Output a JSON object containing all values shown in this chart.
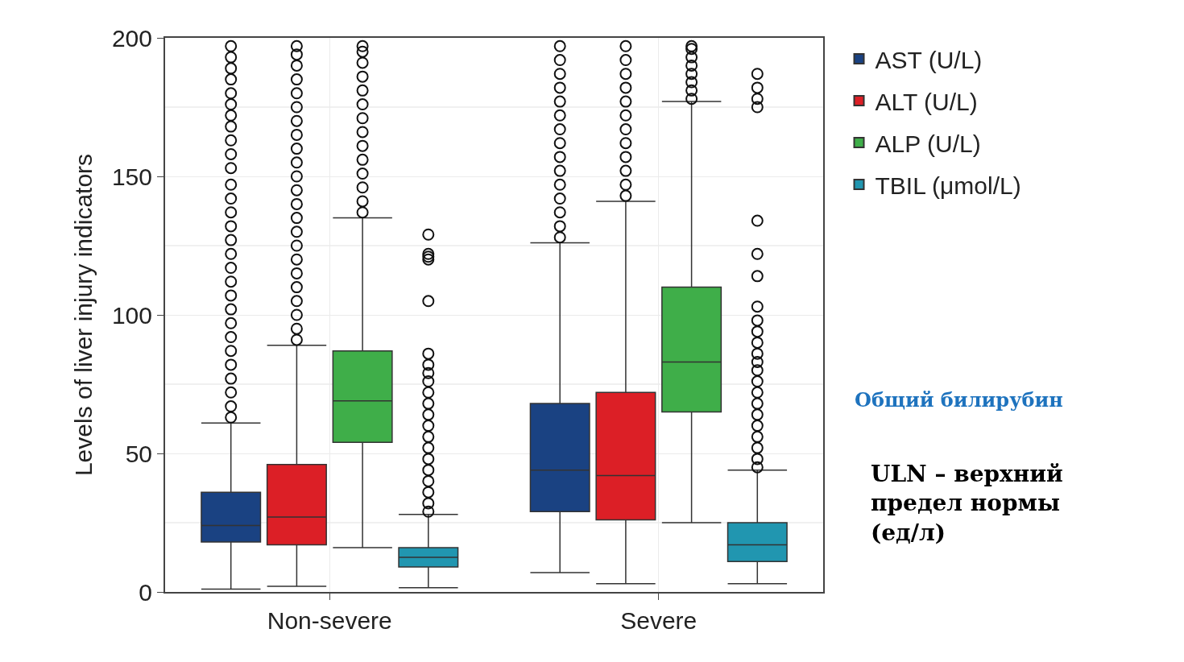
{
  "chart_data": {
    "type": "box",
    "ylabel": "Levels of liver injury indicators",
    "categories": [
      "Non-severe",
      "Severe"
    ],
    "ylim": [
      0,
      200
    ],
    "yticks": [
      0,
      50,
      100,
      150,
      200
    ],
    "grid": true,
    "legend": "top right",
    "marker": "circle",
    "annotations": [
      "Общий билирубин",
      "ULN – верхний предел нормы (ед/л)"
    ],
    "series": [
      {
        "name": "AST (U/L)",
        "color": "#1a4282",
        "boxes": [
          {
            "low": 1,
            "q1": 18,
            "median": 24,
            "q3": 36,
            "high": 61,
            "outliers": [
              63,
              67,
              72,
              77,
              82,
              87,
              92,
              97,
              102,
              107,
              112,
              117,
              122,
              127,
              132,
              137,
              142,
              147,
              153,
              158,
              163,
              168,
              172,
              176,
              180,
              185,
              189,
              193,
              197
            ]
          },
          {
            "low": 7,
            "q1": 29,
            "median": 44,
            "q3": 68,
            "high": 126,
            "outliers": [
              128,
              132,
              137,
              142,
              147,
              152,
              157,
              162,
              167,
              172,
              177,
              182,
              187,
              192,
              197
            ]
          }
        ]
      },
      {
        "name": "ALT (U/L)",
        "color": "#dc1f26",
        "boxes": [
          {
            "low": 2,
            "q1": 17,
            "median": 27,
            "q3": 46,
            "high": 89,
            "outliers": [
              91,
              95,
              100,
              105,
              110,
              115,
              120,
              125,
              130,
              135,
              140,
              145,
              150,
              155,
              160,
              165,
              170,
              175,
              180,
              185,
              190,
              194,
              197
            ]
          },
          {
            "low": 3,
            "q1": 26,
            "median": 42,
            "q3": 72,
            "high": 141,
            "outliers": [
              143,
              147,
              152,
              157,
              162,
              167,
              172,
              177,
              182,
              187,
              192,
              197
            ]
          }
        ]
      },
      {
        "name": "ALP (U/L)",
        "color": "#3fae49",
        "boxes": [
          {
            "low": 16,
            "q1": 54,
            "median": 69,
            "q3": 87,
            "high": 135,
            "outliers": [
              137,
              141,
              146,
              151,
              156,
              161,
              166,
              171,
              176,
              181,
              186,
              191,
              195,
              197
            ]
          },
          {
            "low": 25,
            "q1": 65,
            "median": 83,
            "q3": 110,
            "high": 177,
            "outliers": [
              178,
              181,
              184,
              187,
              190,
              193,
              196,
              197
            ]
          }
        ]
      },
      {
        "name": "TBIL (μmol/L)",
        "color": "#2196b0",
        "boxes": [
          {
            "low": 1.5,
            "q1": 9,
            "median": 12.5,
            "q3": 16,
            "high": 28,
            "outliers": [
              29,
              32,
              36,
              40,
              44,
              48,
              52,
              56,
              60,
              64,
              68,
              72,
              76,
              79,
              82,
              86,
              105,
              120,
              121,
              122,
              129
            ]
          },
          {
            "low": 3,
            "q1": 11,
            "median": 17,
            "q3": 25,
            "high": 44,
            "outliers": [
              45,
              48,
              52,
              56,
              60,
              64,
              68,
              72,
              76,
              80,
              83,
              86,
              90,
              94,
              98,
              103,
              114,
              122,
              134,
              175,
              178,
              182,
              187
            ]
          }
        ]
      }
    ]
  }
}
